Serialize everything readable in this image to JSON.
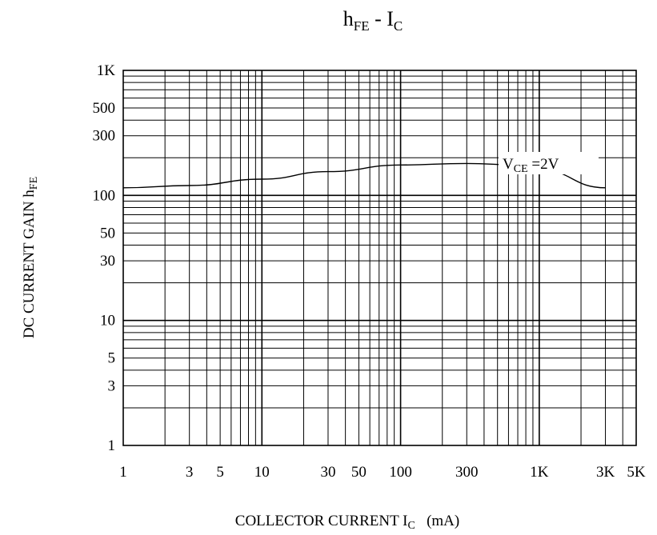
{
  "chart_data": {
    "type": "line",
    "title": {
      "main": "h",
      "main_sub": "FE",
      "sep": " - ",
      "var": "I",
      "var_sub": "C"
    },
    "xlabel": {
      "text": "COLLECTOR CURRENT I",
      "sub": "C",
      "unit": "(mA)"
    },
    "ylabel": {
      "text": "DC CURRENT GAIN h",
      "sub": "FE"
    },
    "x_scale": "log",
    "y_scale": "log",
    "xlim": [
      1,
      5000
    ],
    "ylim": [
      1,
      1000
    ],
    "x_ticks": [
      {
        "v": 1,
        "label": "1"
      },
      {
        "v": 3,
        "label": "3"
      },
      {
        "v": 5,
        "label": "5"
      },
      {
        "v": 10,
        "label": "10"
      },
      {
        "v": 30,
        "label": "30"
      },
      {
        "v": 50,
        "label": "50"
      },
      {
        "v": 100,
        "label": "100"
      },
      {
        "v": 300,
        "label": "300"
      },
      {
        "v": 1000,
        "label": "1K"
      },
      {
        "v": 3000,
        "label": "3K"
      },
      {
        "v": 5000,
        "label": "5K"
      }
    ],
    "y_ticks": [
      {
        "v": 1,
        "label": "1"
      },
      {
        "v": 3,
        "label": "3"
      },
      {
        "v": 5,
        "label": "5"
      },
      {
        "v": 10,
        "label": "10"
      },
      {
        "v": 30,
        "label": "30"
      },
      {
        "v": 50,
        "label": "50"
      },
      {
        "v": 100,
        "label": "100"
      },
      {
        "v": 300,
        "label": "300"
      },
      {
        "v": 500,
        "label": "500"
      },
      {
        "v": 1000,
        "label": "1K"
      }
    ],
    "grid": true,
    "series": [
      {
        "name": {
          "text": "V",
          "sub": "CE",
          "rest": " =2V"
        },
        "color": "#000000",
        "x": [
          1,
          3,
          10,
          30,
          100,
          300,
          700,
          1000,
          3000
        ],
        "y": [
          115,
          120,
          135,
          155,
          175,
          180,
          175,
          160,
          115
        ]
      }
    ]
  }
}
